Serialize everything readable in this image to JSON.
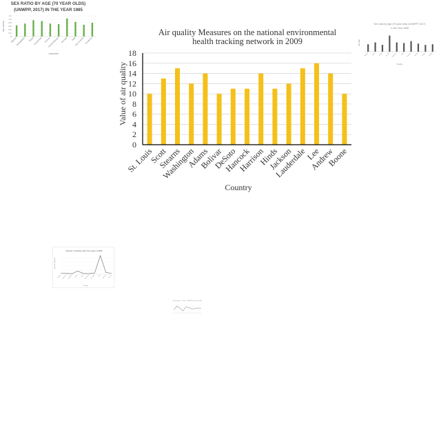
{
  "chart_data": [
    {
      "id": "main",
      "type": "bar",
      "title": "Air quality Measures on the national environmental health tracking network in 2009",
      "title_lines": [
        "Air quality Measures on the national environmental",
        "health tracking network in 2009"
      ],
      "xlabel": "Country",
      "ylabel": "Value of air quality",
      "categories": [
        "St. Louis",
        "Scott",
        "Stearns",
        "Washington",
        "Adams",
        "Bolivar",
        "DeSoto",
        "Hancock",
        "Harrison",
        "Hinds",
        "Jackson",
        "Lauderdale",
        "Lee",
        "Andrew",
        "Boone"
      ],
      "values": [
        10,
        13,
        15,
        12,
        14,
        10,
        11,
        11,
        14,
        11,
        12,
        15,
        16,
        14,
        10
      ],
      "ylim": [
        0,
        18
      ],
      "yticks": [
        "0",
        "2",
        "4",
        "6",
        "8",
        "10",
        "12",
        "14",
        "16",
        "18"
      ],
      "grid": true,
      "legend": "none",
      "colors": {
        "bar": "#f5c01a",
        "grid": "#d9d9d9",
        "axis": "#000000",
        "text": "#333333"
      }
    },
    {
      "id": "thumb-top-left",
      "type": "bar",
      "title": "SEX RATIO BY AGE (70 YEAR OLDS) (UNWPP, 2017) IN THE YEAR 1985",
      "title_lines": [
        "SEX RATIO BY AGE (70 YEAR OLDS)",
        "(UNWPP, 2017) IN THE YEAR 1985"
      ],
      "xlabel": "COUNTRY",
      "ylabel": "SEX RATIO",
      "categories": [
        "Djibouti",
        "Bangladesh",
        "Egypt",
        "Guatemala",
        "Greece",
        "Guinea-Bissau",
        "Georgia",
        "Haiti",
        "Iran Country",
        "Honduras"
      ],
      "values": [
        0.65,
        0.75,
        0.95,
        0.9,
        0.75,
        0.72,
        1.05,
        0.85,
        0.68,
        0.8
      ],
      "ylim": [
        0,
        1.2
      ],
      "yticks": [
        "0",
        "0.2",
        "0.4",
        "0.6",
        "0.8",
        "1.0",
        "1.2"
      ],
      "colors": {
        "bar": "#6ab04c",
        "title": "#444444"
      }
    },
    {
      "id": "thumb-top-right",
      "type": "bar",
      "title": "Sex ratio by age (70 year olds) (UNWPP, 2017) in the Year 1985",
      "title_lines": [
        "Sex ratio by age (70 year olds) (UNWPP, 2017)",
        "in the Year 1985"
      ],
      "xlabel": "Country",
      "ylabel": "Sex ratio",
      "categories": [
        "Bahrain",
        "Benin",
        "Bolivia",
        "Burundi",
        "Cameroon",
        "Chad",
        "Comoros",
        "Djibouti",
        "Eritrea",
        "Gambia"
      ],
      "values": [
        0.6,
        0.75,
        0.55,
        1.3,
        0.75,
        0.7,
        0.85,
        0.65,
        0.55,
        0.6
      ],
      "ylim": [
        0,
        1.5
      ],
      "colors": {
        "bar": "#555555",
        "title": "#888888"
      }
    },
    {
      "id": "thumb-middle-left",
      "type": "line",
      "title": "Number of deaths under five years in 2006",
      "xlabel": "Country",
      "ylabel": "Number of deaths",
      "categories": [
        "Antigua",
        "Bahamas",
        "Barbados",
        "Belize",
        "Cuba",
        "Dominica",
        "Grenada",
        "Haiti",
        "Jamaica",
        "St Lucia"
      ],
      "values": [
        0.05,
        0.04,
        0.03,
        0.15,
        0.04,
        0.03,
        0.06,
        0.9,
        0.08,
        0.05
      ],
      "ylim": [
        0,
        1
      ],
      "colors": {
        "line": "#666666",
        "title": "#555555"
      }
    },
    {
      "id": "thumb-bottom",
      "type": "line",
      "title": "Percentage of ... under ... (UNWPP) in the year 1985",
      "categories": [
        "a",
        "b",
        "c",
        "d",
        "e",
        "f",
        "g",
        "h",
        "i",
        "j"
      ],
      "values": [
        0.3,
        0.7,
        0.5,
        0.2,
        0.6,
        0.55,
        0.4,
        0.45,
        0.5,
        0.48
      ],
      "ylim": [
        0,
        1
      ],
      "colors": {
        "line": "#999999",
        "title": "#888888"
      }
    }
  ]
}
